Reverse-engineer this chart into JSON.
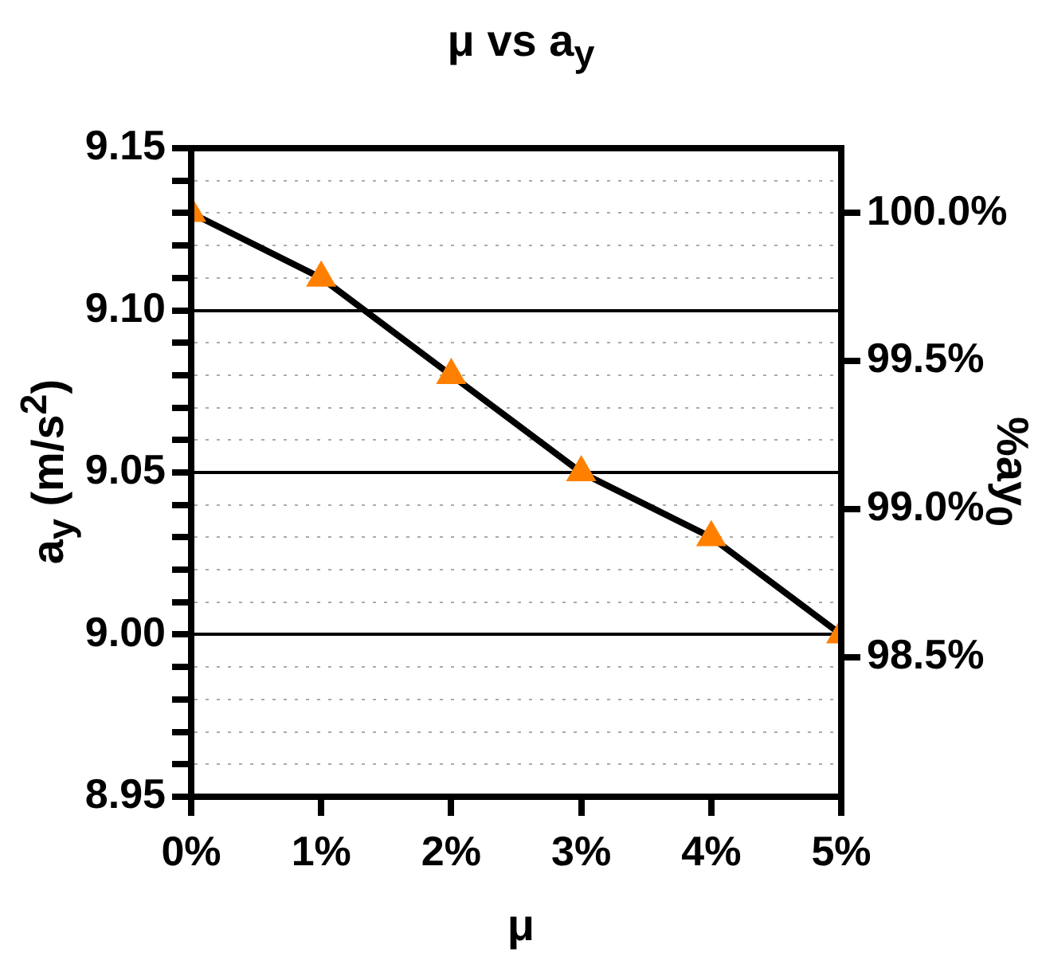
{
  "chart_data": {
    "type": "line",
    "title": "μ vs a$_{y}$",
    "xlabel": "μ",
    "ylabel": "a$_{y}$ (m/s$^{2}$)",
    "y2label": "%ay$_{0}$",
    "x": [
      0,
      1,
      2,
      3,
      4,
      5
    ],
    "series": [
      {
        "type": "line",
        "color": "#000000",
        "marker": "none",
        "values": [
          9.13,
          9.11,
          9.08,
          9.05,
          9.03,
          9.0
        ]
      },
      {
        "type": "scatter",
        "color": "#ff8000",
        "marker": "triangle",
        "values": [
          9.13,
          9.11,
          9.08,
          9.05,
          9.03,
          9.0
        ]
      }
    ],
    "xlim": [
      0,
      5
    ],
    "xticks": [
      {
        "value": 0,
        "label": "0%"
      },
      {
        "value": 1,
        "label": "1%"
      },
      {
        "value": 2,
        "label": "2%"
      },
      {
        "value": 3,
        "label": "3%"
      },
      {
        "value": 4,
        "label": "4%"
      },
      {
        "value": 5,
        "label": "5%"
      }
    ],
    "ylim": [
      8.95,
      9.15
    ],
    "yticks": [
      {
        "value": 8.95,
        "label": "8.95"
      },
      {
        "value": 8.96,
        "label": null
      },
      {
        "value": 8.97,
        "label": null
      },
      {
        "value": 8.98,
        "label": null
      },
      {
        "value": 8.99,
        "label": null
      },
      {
        "value": 9.0,
        "label": "9.00"
      },
      {
        "value": 9.01,
        "label": null
      },
      {
        "value": 9.02,
        "label": null
      },
      {
        "value": 9.03,
        "label": null
      },
      {
        "value": 9.04,
        "label": null
      },
      {
        "value": 9.05,
        "label": "9.05"
      },
      {
        "value": 9.06,
        "label": null
      },
      {
        "value": 9.07,
        "label": null
      },
      {
        "value": 9.08,
        "label": null
      },
      {
        "value": 9.09,
        "label": null
      },
      {
        "value": 9.1,
        "label": "9.10"
      },
      {
        "value": 9.11,
        "label": null
      },
      {
        "value": 9.12,
        "label": null
      },
      {
        "value": 9.13,
        "label": null
      },
      {
        "value": 9.14,
        "label": null
      },
      {
        "value": 9.15,
        "label": "9.15"
      }
    ],
    "y2lim": [
      98.028,
      100.219
    ],
    "y2ticks": [
      {
        "value": 98.5,
        "label": "98.5%"
      },
      {
        "value": 99,
        "label": "99.0%"
      },
      {
        "value": 99.5,
        "label": "99.5%"
      },
      {
        "value": 100,
        "label": "100.0%"
      }
    ],
    "grid": "y",
    "legend": false,
    "line_style": "solid"
  }
}
